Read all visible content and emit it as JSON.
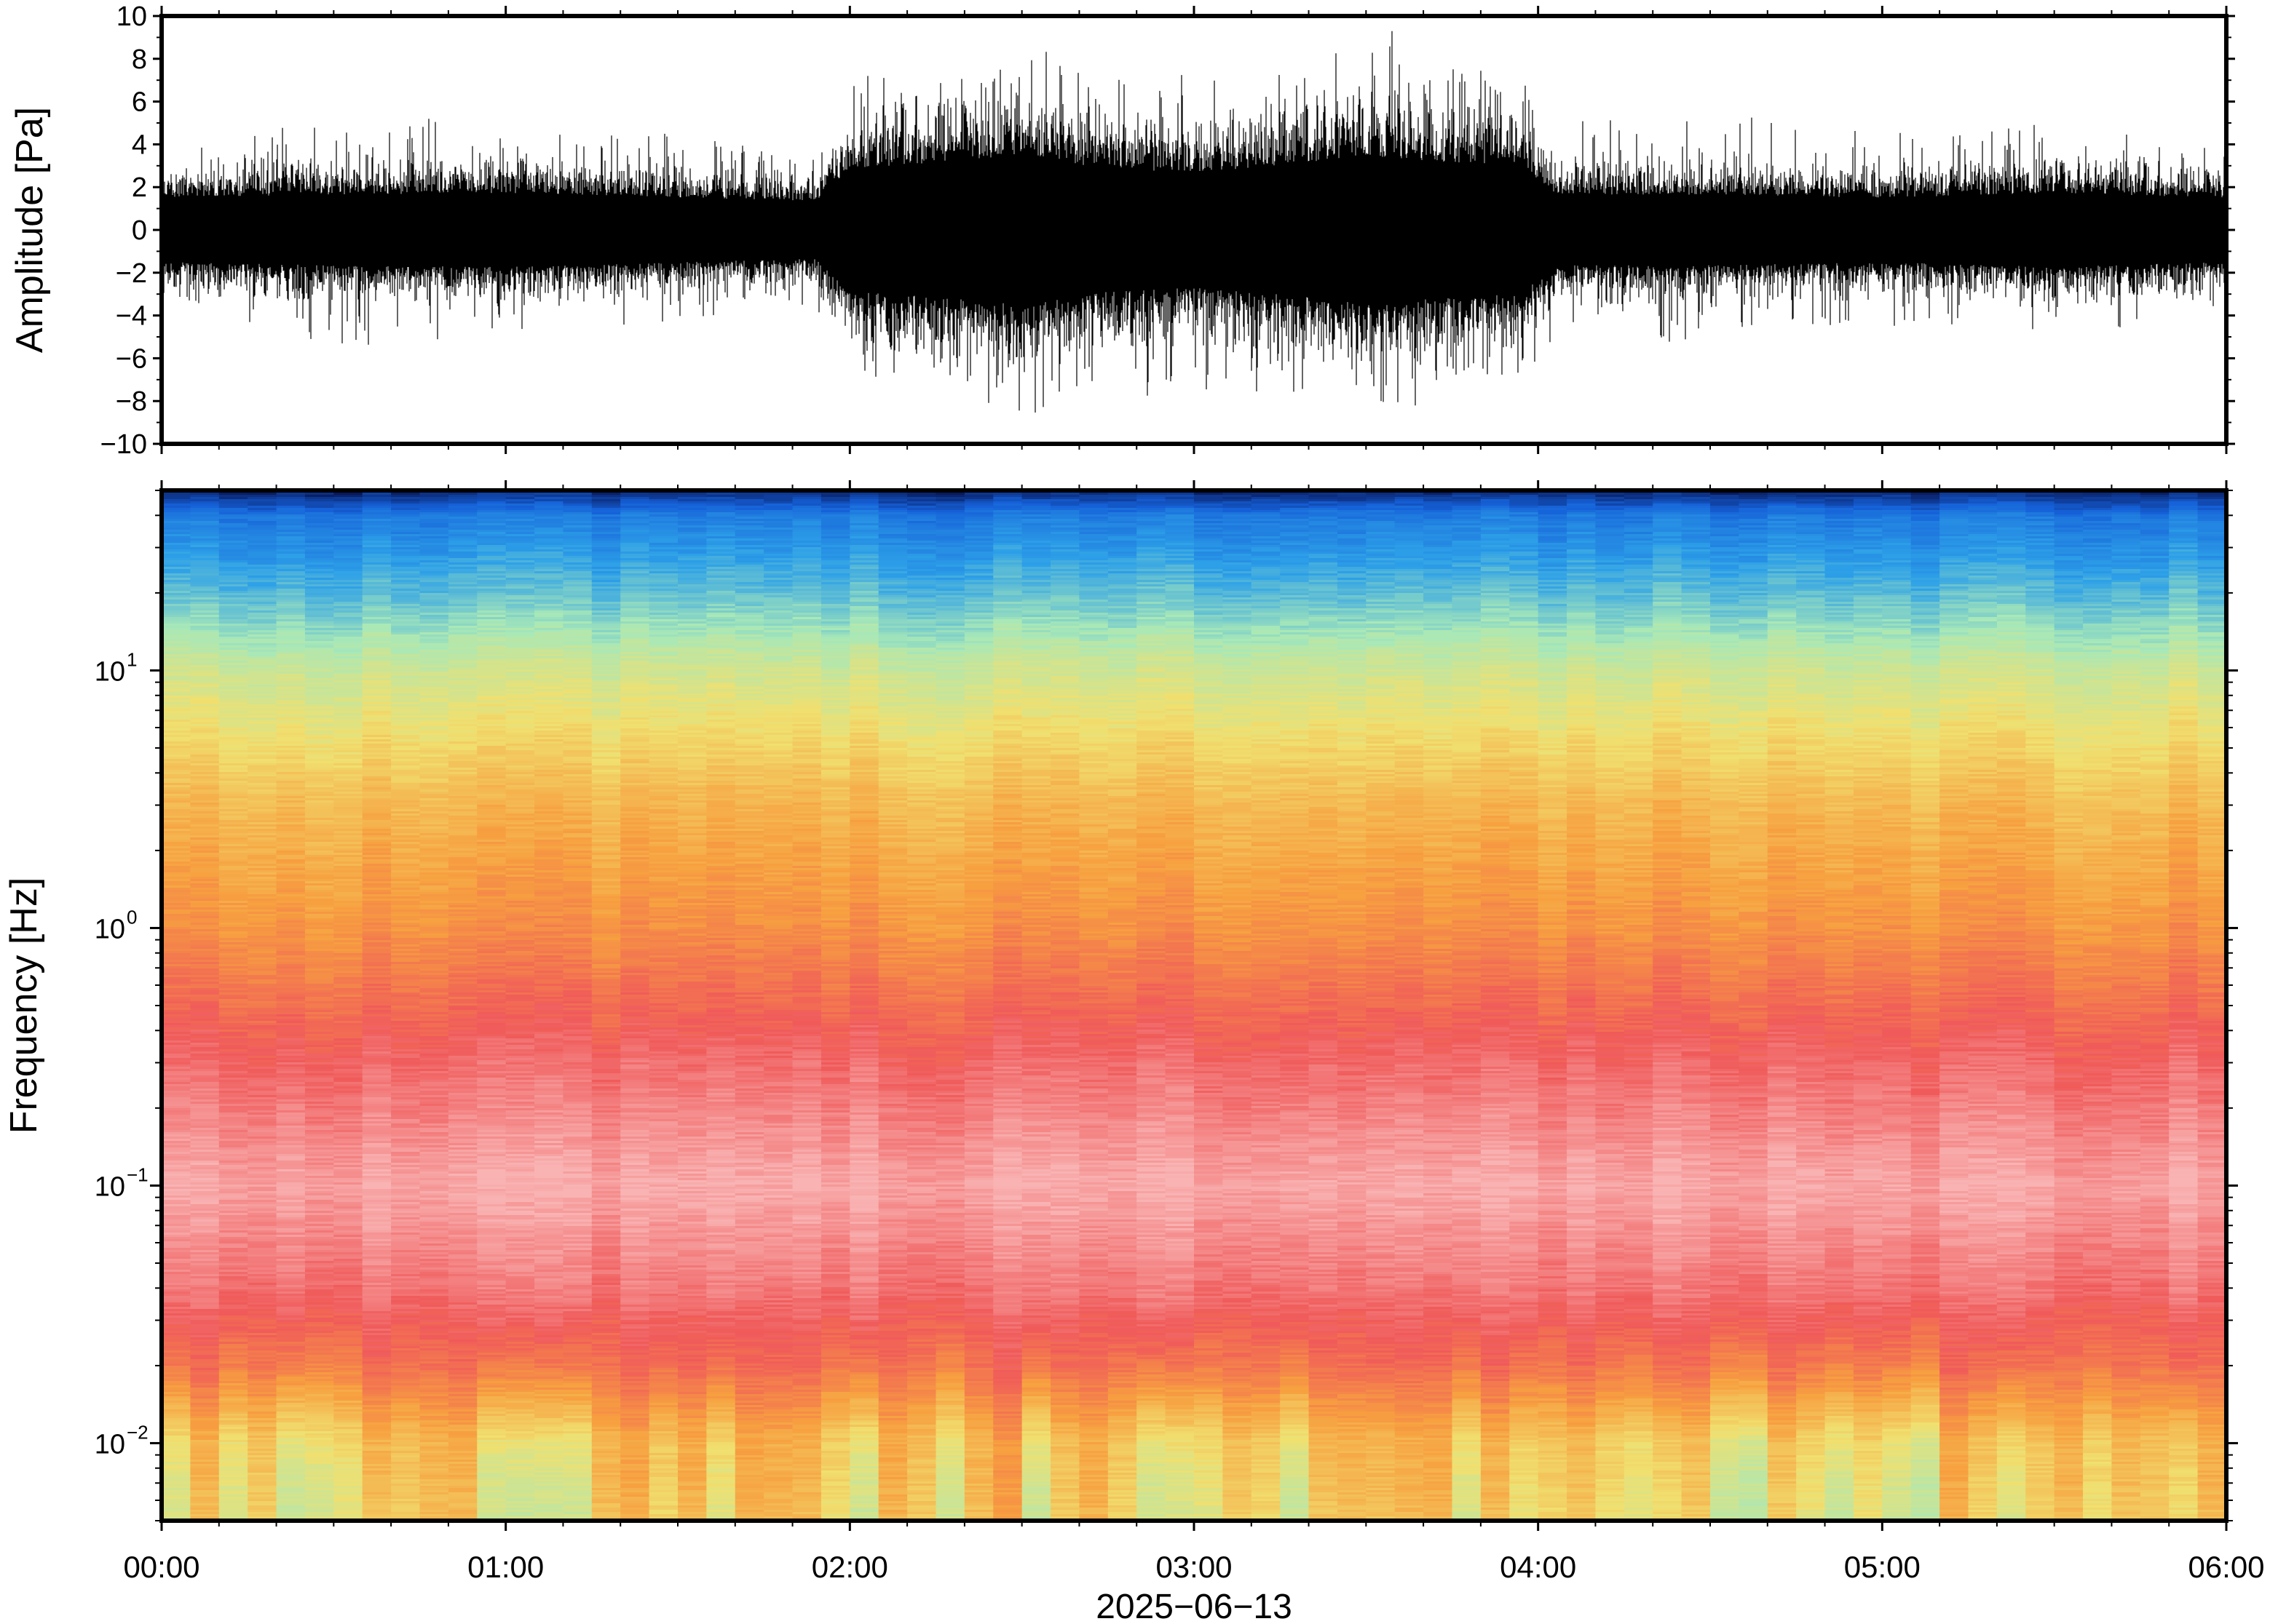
{
  "chart_data": [
    {
      "type": "line",
      "panel": "waveform",
      "ylabel": "Amplitude [Pa]",
      "xlabel": "",
      "ylim": [
        -10,
        10
      ],
      "xlim": [
        "00:00",
        "06:00"
      ],
      "y_ticks": [
        10,
        8,
        6,
        4,
        2,
        0,
        -2,
        -4,
        -6,
        -8,
        -10
      ],
      "y_tick_labels": [
        "10",
        "8",
        "6",
        "4",
        "2",
        "0",
        "−2",
        "−4",
        "−6",
        "−8",
        "−10"
      ],
      "grid": false,
      "series": [
        {
          "color": "#000000",
          "envelope": {
            "time_hours": [
              0.0,
              0.5,
              1.0,
              1.5,
              1.9,
              2.0,
              2.25,
              2.5,
              2.75,
              3.0,
              3.25,
              3.5,
              3.75,
              3.95,
              4.05,
              4.5,
              5.0,
              5.5,
              6.0
            ],
            "typical_amplitude_pa": [
              2.0,
              2.2,
              2.3,
              2.0,
              1.8,
              3.8,
              4.2,
              4.6,
              3.8,
              3.6,
              4.0,
              4.6,
              4.2,
              4.0,
              2.2,
              2.2,
              2.0,
              2.3,
              2.0
            ],
            "peak_amplitude_pa": [
              3.5,
              5.5,
              5.0,
              4.5,
              3.5,
              7.5,
              7.0,
              9.0,
              7.0,
              7.5,
              7.5,
              9.0,
              8.0,
              7.5,
              5.0,
              5.5,
              4.5,
              5.0,
              4.0
            ]
          }
        }
      ]
    },
    {
      "type": "heatmap",
      "panel": "spectrogram",
      "ylabel": "Frequency [Hz]",
      "xlabel": "2025−06−13",
      "y_scale": "log",
      "ylim": [
        0.005,
        50
      ],
      "y_ticks": [
        0.01,
        0.1,
        1,
        10
      ],
      "y_tick_labels": [
        {
          "base": "10",
          "exp": "−2"
        },
        {
          "base": "10",
          "exp": "−1"
        },
        {
          "base": "10",
          "exp": "0"
        },
        {
          "base": "10",
          "exp": "1"
        }
      ],
      "x_ticks": [
        "00:00",
        "01:00",
        "02:00",
        "03:00",
        "04:00",
        "05:00",
        "06:00"
      ],
      "x_tick_hours": [
        0,
        1,
        2,
        3,
        4,
        5,
        6
      ],
      "xlim": [
        "00:00",
        "06:00"
      ],
      "grid": false,
      "colormap_stops": [
        "#f9b3b3",
        "#f05a5a",
        "#f7a040",
        "#f0e070",
        "#a8e8b8",
        "#2da0e8",
        "#1560d8",
        "#081858"
      ],
      "power_profile": {
        "freq_hz": [
          0.005,
          0.01,
          0.02,
          0.04,
          0.1,
          0.3,
          1,
          3,
          10,
          20,
          40,
          50
        ],
        "relative_power": [
          0.42,
          0.38,
          0.2,
          0.1,
          0.02,
          0.12,
          0.26,
          0.34,
          0.5,
          0.66,
          0.8,
          0.98
        ]
      }
    }
  ]
}
